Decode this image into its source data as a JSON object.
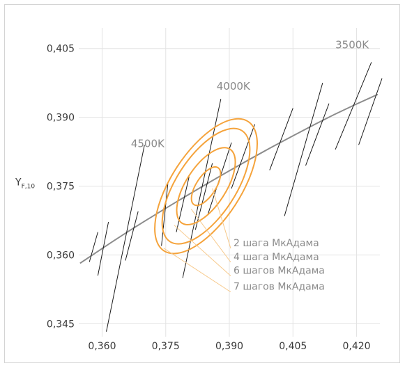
{
  "chart_data": {
    "type": "line",
    "title": "",
    "xlabel": "",
    "ylabel": {
      "main": "Y",
      "sub": "F,10"
    },
    "xlim": [
      0.3545,
      0.4255
    ],
    "ylim": [
      0.3422,
      0.4095
    ],
    "grid": true,
    "x_ticks": [
      {
        "value": 0.36,
        "label": "0,360"
      },
      {
        "value": 0.375,
        "label": "0,375"
      },
      {
        "value": 0.39,
        "label": "0,390"
      },
      {
        "value": 0.405,
        "label": "0,405"
      },
      {
        "value": 0.42,
        "label": "0,420"
      }
    ],
    "y_ticks": [
      {
        "value": 0.405,
        "label": "0,405"
      },
      {
        "value": 0.39,
        "label": "0,390"
      },
      {
        "value": 0.375,
        "label": "0,375"
      },
      {
        "value": 0.36,
        "label": "0,360"
      },
      {
        "value": 0.345,
        "label": "0,345"
      }
    ],
    "colors": {
      "curve": "#8c8c8c",
      "ellipse": "#f5a33b",
      "leader": "#f7c98b",
      "isotherm": "#1a1a1a",
      "grid": "#e3e3e3",
      "text": "#3a3a3a",
      "annotation": "#8a8a8a"
    },
    "planckian_locus": [
      {
        "x": 0.3548,
        "y": 0.3582
      },
      {
        "x": 0.365,
        "y": 0.3645
      },
      {
        "x": 0.375,
        "y": 0.3702
      },
      {
        "x": 0.385,
        "y": 0.3757
      },
      {
        "x": 0.395,
        "y": 0.381
      },
      {
        "x": 0.405,
        "y": 0.386
      },
      {
        "x": 0.415,
        "y": 0.3908
      },
      {
        "x": 0.425,
        "y": 0.395
      }
    ],
    "isotherms": [
      {
        "from": {
          "x": 0.361,
          "y": 0.3433
        },
        "to": {
          "x": 0.37,
          "y": 0.384
        }
      },
      {
        "from": {
          "x": 0.357,
          "y": 0.3585
        },
        "to": {
          "x": 0.359,
          "y": 0.365
        }
      },
      {
        "from": {
          "x": 0.359,
          "y": 0.3555
        },
        "to": {
          "x": 0.3615,
          "y": 0.3672
        }
      },
      {
        "from": {
          "x": 0.3655,
          "y": 0.3588
        },
        "to": {
          "x": 0.3685,
          "y": 0.3695
        }
      },
      {
        "from": {
          "x": 0.374,
          "y": 0.362
        },
        "to": {
          "x": 0.3755,
          "y": 0.3755
        }
      },
      {
        "from": {
          "x": 0.3775,
          "y": 0.365
        },
        "to": {
          "x": 0.3805,
          "y": 0.377
        }
      },
      {
        "from": {
          "x": 0.379,
          "y": 0.355
        },
        "to": {
          "x": 0.388,
          "y": 0.394
        }
      },
      {
        "from": {
          "x": 0.382,
          "y": 0.3655
        },
        "to": {
          "x": 0.386,
          "y": 0.38
        }
      },
      {
        "from": {
          "x": 0.385,
          "y": 0.369
        },
        "to": {
          "x": 0.3905,
          "y": 0.3845
        }
      },
      {
        "from": {
          "x": 0.3905,
          "y": 0.3745
        },
        "to": {
          "x": 0.396,
          "y": 0.3885
        }
      },
      {
        "from": {
          "x": 0.3995,
          "y": 0.3785
        },
        "to": {
          "x": 0.405,
          "y": 0.392
        }
      },
      {
        "from": {
          "x": 0.403,
          "y": 0.3685
        },
        "to": {
          "x": 0.412,
          "y": 0.3975
        }
      },
      {
        "from": {
          "x": 0.408,
          "y": 0.3795
        },
        "to": {
          "x": 0.4135,
          "y": 0.393
        }
      },
      {
        "from": {
          "x": 0.415,
          "y": 0.383
        },
        "to": {
          "x": 0.4235,
          "y": 0.402
        }
      },
      {
        "from": {
          "x": 0.4205,
          "y": 0.384
        },
        "to": {
          "x": 0.426,
          "y": 0.3985
        }
      }
    ],
    "cct_labels": [
      {
        "label": "4500K",
        "x": 0.3668,
        "y": 0.3835
      },
      {
        "label": "4000K",
        "x": 0.387,
        "y": 0.396
      },
      {
        "label": "3500K",
        "x": 0.415,
        "y": 0.405
      }
    ],
    "ellipses": [
      {
        "name": "2 шага МкАдама",
        "cx": 0.3845,
        "cy": 0.375,
        "rx": 0.0023,
        "ry": 0.0048,
        "angle_deg": 33
      },
      {
        "name": "4 шага МкАдама",
        "cx": 0.3845,
        "cy": 0.375,
        "rx": 0.0047,
        "ry": 0.0096,
        "angle_deg": 33
      },
      {
        "name": "6 шагов МкАдама",
        "cx": 0.3845,
        "cy": 0.375,
        "rx": 0.007,
        "ry": 0.0144,
        "angle_deg": 33
      },
      {
        "name": "7 шагов МкАдама",
        "cx": 0.3845,
        "cy": 0.375,
        "rx": 0.0082,
        "ry": 0.0168,
        "angle_deg": 33
      }
    ],
    "ellipse_labels": [
      {
        "label": "2 шага МкАдама",
        "anchor": {
          "x": 0.386,
          "y": 0.3745
        },
        "label_at": {
          "x": 0.39,
          "y": 0.3625
        }
      },
      {
        "label": "4 шага МкАдама",
        "anchor": {
          "x": 0.381,
          "y": 0.37
        },
        "label_at": {
          "x": 0.39,
          "y": 0.3595
        }
      },
      {
        "label": "6 шагов МкАдама",
        "anchor": {
          "x": 0.377,
          "y": 0.3665
        },
        "label_at": {
          "x": 0.39,
          "y": 0.3565
        }
      },
      {
        "label": "7 шагов МкАдама",
        "anchor": {
          "x": 0.3745,
          "y": 0.3615
        },
        "label_at": {
          "x": 0.39,
          "y": 0.353
        }
      }
    ]
  }
}
